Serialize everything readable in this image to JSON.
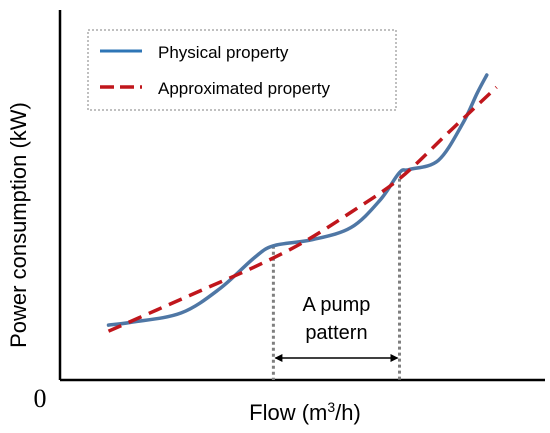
{
  "chart_data": {
    "type": "line",
    "xlabel": "Flow (m³/h)",
    "ylabel": "Power consumption (kW)",
    "origin_label": "0",
    "xlim": [
      0,
      100
    ],
    "ylim": [
      0,
      100
    ],
    "grid": false,
    "legend": {
      "placement": "top-left",
      "border": "dotted"
    },
    "series": [
      {
        "name": "Physical property",
        "style": "solid",
        "color": "#4f77a5",
        "x": [
          10,
          15,
          25,
          33,
          40,
          44,
          52,
          60,
          66,
          70,
          72,
          78,
          83,
          86,
          88
        ],
        "y": [
          18,
          19,
          22,
          30,
          40,
          44,
          46,
          50,
          59,
          68,
          69,
          72,
          84,
          94,
          100
        ]
      },
      {
        "name": "Approximated property",
        "style": "dashed",
        "color": "#c0161c",
        "x": [
          10,
          20,
          30,
          40,
          50,
          60,
          70,
          80,
          90
        ],
        "y": [
          16,
          23,
          30,
          37,
          45,
          55,
          66,
          81,
          96
        ]
      }
    ],
    "annotation": {
      "lines": [
        "A pump",
        "pattern"
      ],
      "x_start": 44,
      "x_end": 70
    },
    "colors": {
      "legend_physical": "#2e75b6",
      "annotation_dotted": "#7f7f7f",
      "axis": "#000000"
    }
  }
}
